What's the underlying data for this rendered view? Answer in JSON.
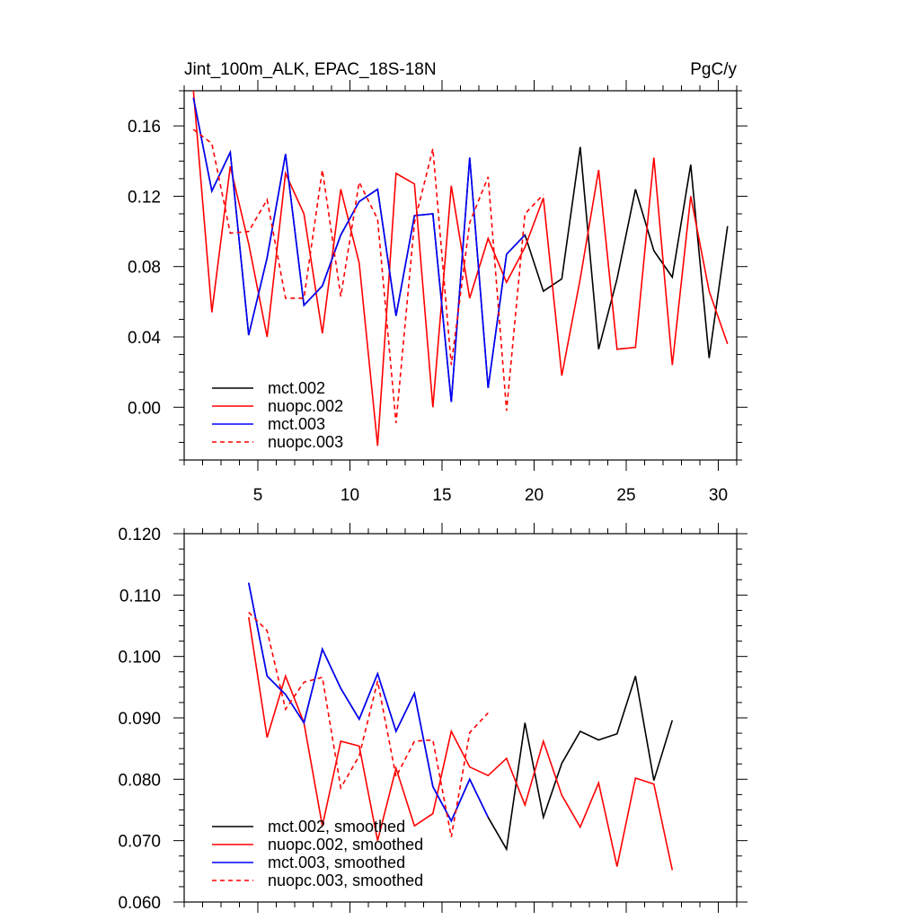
{
  "colors": {
    "black": "#000000",
    "red": "#ff0000",
    "blue": "#0000ff"
  },
  "chart_data": [
    {
      "type": "line",
      "title": "Jint_100m_ALK, EPAC_18S-18N",
      "units": "PgC/y",
      "xlabel": "",
      "ylabel": "",
      "xlim": [
        1,
        31
      ],
      "ylim": [
        -0.03,
        0.18
      ],
      "xticks": [
        5,
        10,
        15,
        20,
        25,
        30
      ],
      "yticks": [
        0.0,
        0.04,
        0.08,
        0.12,
        0.16
      ],
      "ytick_labels": [
        "0.00",
        "0.04",
        "0.08",
        "0.12",
        "0.16"
      ],
      "legend_position": "bottom-left",
      "series": [
        {
          "name": "mct.002",
          "color": "#000000",
          "dash": false,
          "x": [
            1.5,
            2.5,
            3.5,
            4.5,
            5.5,
            6.5,
            7.5,
            8.5,
            9.5,
            10.5,
            11.5,
            12.5,
            13.5,
            14.5,
            15.5,
            16.5,
            17.5,
            18.5,
            19.5,
            20.5,
            21.5,
            22.5,
            23.5,
            24.5,
            25.5,
            26.5,
            27.5,
            28.5,
            29.5,
            30.5
          ],
          "values": [
            0.176,
            0.123,
            0.145,
            0.041,
            0.085,
            0.144,
            0.058,
            0.069,
            0.098,
            0.117,
            0.124,
            0.052,
            0.109,
            0.11,
            0.003,
            0.142,
            0.011,
            0.087,
            0.098,
            0.066,
            0.073,
            0.148,
            0.033,
            0.073,
            0.124,
            0.089,
            0.074,
            0.138,
            0.028,
            0.103
          ]
        },
        {
          "name": "nuopc.002",
          "color": "#ff0000",
          "dash": false,
          "x": [
            1.5,
            2.5,
            3.5,
            4.5,
            5.5,
            6.5,
            7.5,
            8.5,
            9.5,
            10.5,
            11.5,
            12.5,
            13.5,
            14.5,
            15.5,
            16.5,
            17.5,
            18.5,
            19.5,
            20.5,
            21.5,
            22.5,
            23.5,
            24.5,
            25.5,
            26.5,
            27.5,
            28.5,
            29.5,
            30.5
          ],
          "values": [
            0.18,
            0.054,
            0.137,
            0.093,
            0.04,
            0.133,
            0.11,
            0.042,
            0.124,
            0.082,
            -0.022,
            0.133,
            0.127,
            0.0,
            0.126,
            0.062,
            0.096,
            0.071,
            0.091,
            0.119,
            0.018,
            0.073,
            0.135,
            0.033,
            0.034,
            0.142,
            0.024,
            0.12,
            0.066,
            0.036
          ]
        },
        {
          "name": "mct.003",
          "color": "#0000ff",
          "dash": false,
          "x": [
            1.5,
            2.5,
            3.5,
            4.5,
            5.5,
            6.5,
            7.5,
            8.5,
            9.5,
            10.5,
            11.5,
            12.5,
            13.5,
            14.5,
            15.5,
            16.5,
            17.5,
            18.5,
            19.5
          ],
          "values": [
            0.176,
            0.123,
            0.145,
            0.041,
            0.085,
            0.144,
            0.058,
            0.069,
            0.098,
            0.117,
            0.124,
            0.052,
            0.109,
            0.11,
            0.003,
            0.142,
            0.011,
            0.087,
            0.098
          ]
        },
        {
          "name": "nuopc.003",
          "color": "#ff0000",
          "dash": true,
          "x": [
            1.5,
            2.5,
            3.5,
            4.5,
            5.5,
            6.5,
            7.5,
            8.5,
            9.5,
            10.5,
            11.5,
            12.5,
            13.5,
            14.5,
            15.5,
            16.5,
            17.5,
            18.5,
            19.5,
            20.5
          ],
          "values": [
            0.158,
            0.15,
            0.099,
            0.1,
            0.118,
            0.062,
            0.062,
            0.135,
            0.063,
            0.128,
            0.107,
            -0.009,
            0.105,
            0.147,
            0.024,
            0.105,
            0.131,
            -0.002,
            0.11,
            0.121
          ]
        }
      ]
    },
    {
      "type": "line",
      "title": "",
      "xlabel": "",
      "ylabel": "",
      "xlim": [
        1,
        31
      ],
      "ylim": [
        0.06,
        0.12
      ],
      "xticks": [
        5,
        10,
        15,
        20,
        25,
        30
      ],
      "yticks": [
        0.06,
        0.07,
        0.08,
        0.09,
        0.1,
        0.11,
        0.12
      ],
      "ytick_labels": [
        "0.060",
        "0.070",
        "0.080",
        "0.090",
        "0.100",
        "0.110",
        "0.120"
      ],
      "legend_position": "bottom-left",
      "series": [
        {
          "name": "mct.002, smoothed",
          "color": "#000000",
          "dash": false,
          "x": [
            4.5,
            5.5,
            6.5,
            7.5,
            8.5,
            9.5,
            10.5,
            11.5,
            12.5,
            13.5,
            14.5,
            15.5,
            16.5,
            17.5,
            18.5,
            19.5,
            20.5,
            21.5,
            22.5,
            23.5,
            24.5,
            25.5,
            26.5,
            27.5
          ],
          "values": [
            0.112,
            0.0968,
            0.0938,
            0.0892,
            0.1012,
            0.0948,
            0.0898,
            0.0972,
            0.0878,
            0.094,
            0.0788,
            0.0732,
            0.08,
            0.0738,
            0.0686,
            0.0892,
            0.0738,
            0.0826,
            0.0878,
            0.0864,
            0.0874,
            0.0968,
            0.0798,
            0.0896
          ]
        },
        {
          "name": "nuopc.002, smoothed",
          "color": "#ff0000",
          "dash": false,
          "x": [
            4.5,
            5.5,
            6.5,
            7.5,
            8.5,
            9.5,
            10.5,
            11.5,
            12.5,
            13.5,
            14.5,
            15.5,
            16.5,
            17.5,
            18.5,
            19.5,
            20.5,
            21.5,
            22.5,
            23.5,
            24.5,
            25.5,
            26.5,
            27.5
          ],
          "values": [
            0.1064,
            0.0868,
            0.0968,
            0.0892,
            0.0724,
            0.0862,
            0.0854,
            0.07,
            0.0818,
            0.0724,
            0.0744,
            0.0878,
            0.082,
            0.0806,
            0.0834,
            0.0758,
            0.0862,
            0.0774,
            0.0722,
            0.0794,
            0.0658,
            0.0802,
            0.0792,
            0.0652
          ]
        },
        {
          "name": "mct.003, smoothed",
          "color": "#0000ff",
          "dash": false,
          "x": [
            4.5,
            5.5,
            6.5,
            7.5,
            8.5,
            9.5,
            10.5,
            11.5,
            12.5,
            13.5,
            14.5,
            15.5,
            16.5,
            17.5
          ],
          "values": [
            0.112,
            0.0968,
            0.0938,
            0.0892,
            0.1012,
            0.0948,
            0.0898,
            0.0972,
            0.0878,
            0.094,
            0.0788,
            0.0732,
            0.08,
            0.0738
          ]
        },
        {
          "name": "nuopc.003, smoothed",
          "color": "#ff0000",
          "dash": true,
          "x": [
            4.5,
            5.5,
            6.5,
            7.5,
            8.5,
            9.5,
            10.5,
            11.5,
            12.5,
            13.5,
            14.5,
            15.5,
            16.5,
            17.5
          ],
          "values": [
            0.1072,
            0.1042,
            0.0914,
            0.0958,
            0.0966,
            0.0786,
            0.0838,
            0.096,
            0.0804,
            0.0862,
            0.0864,
            0.0706,
            0.0876,
            0.0908
          ]
        }
      ]
    }
  ]
}
